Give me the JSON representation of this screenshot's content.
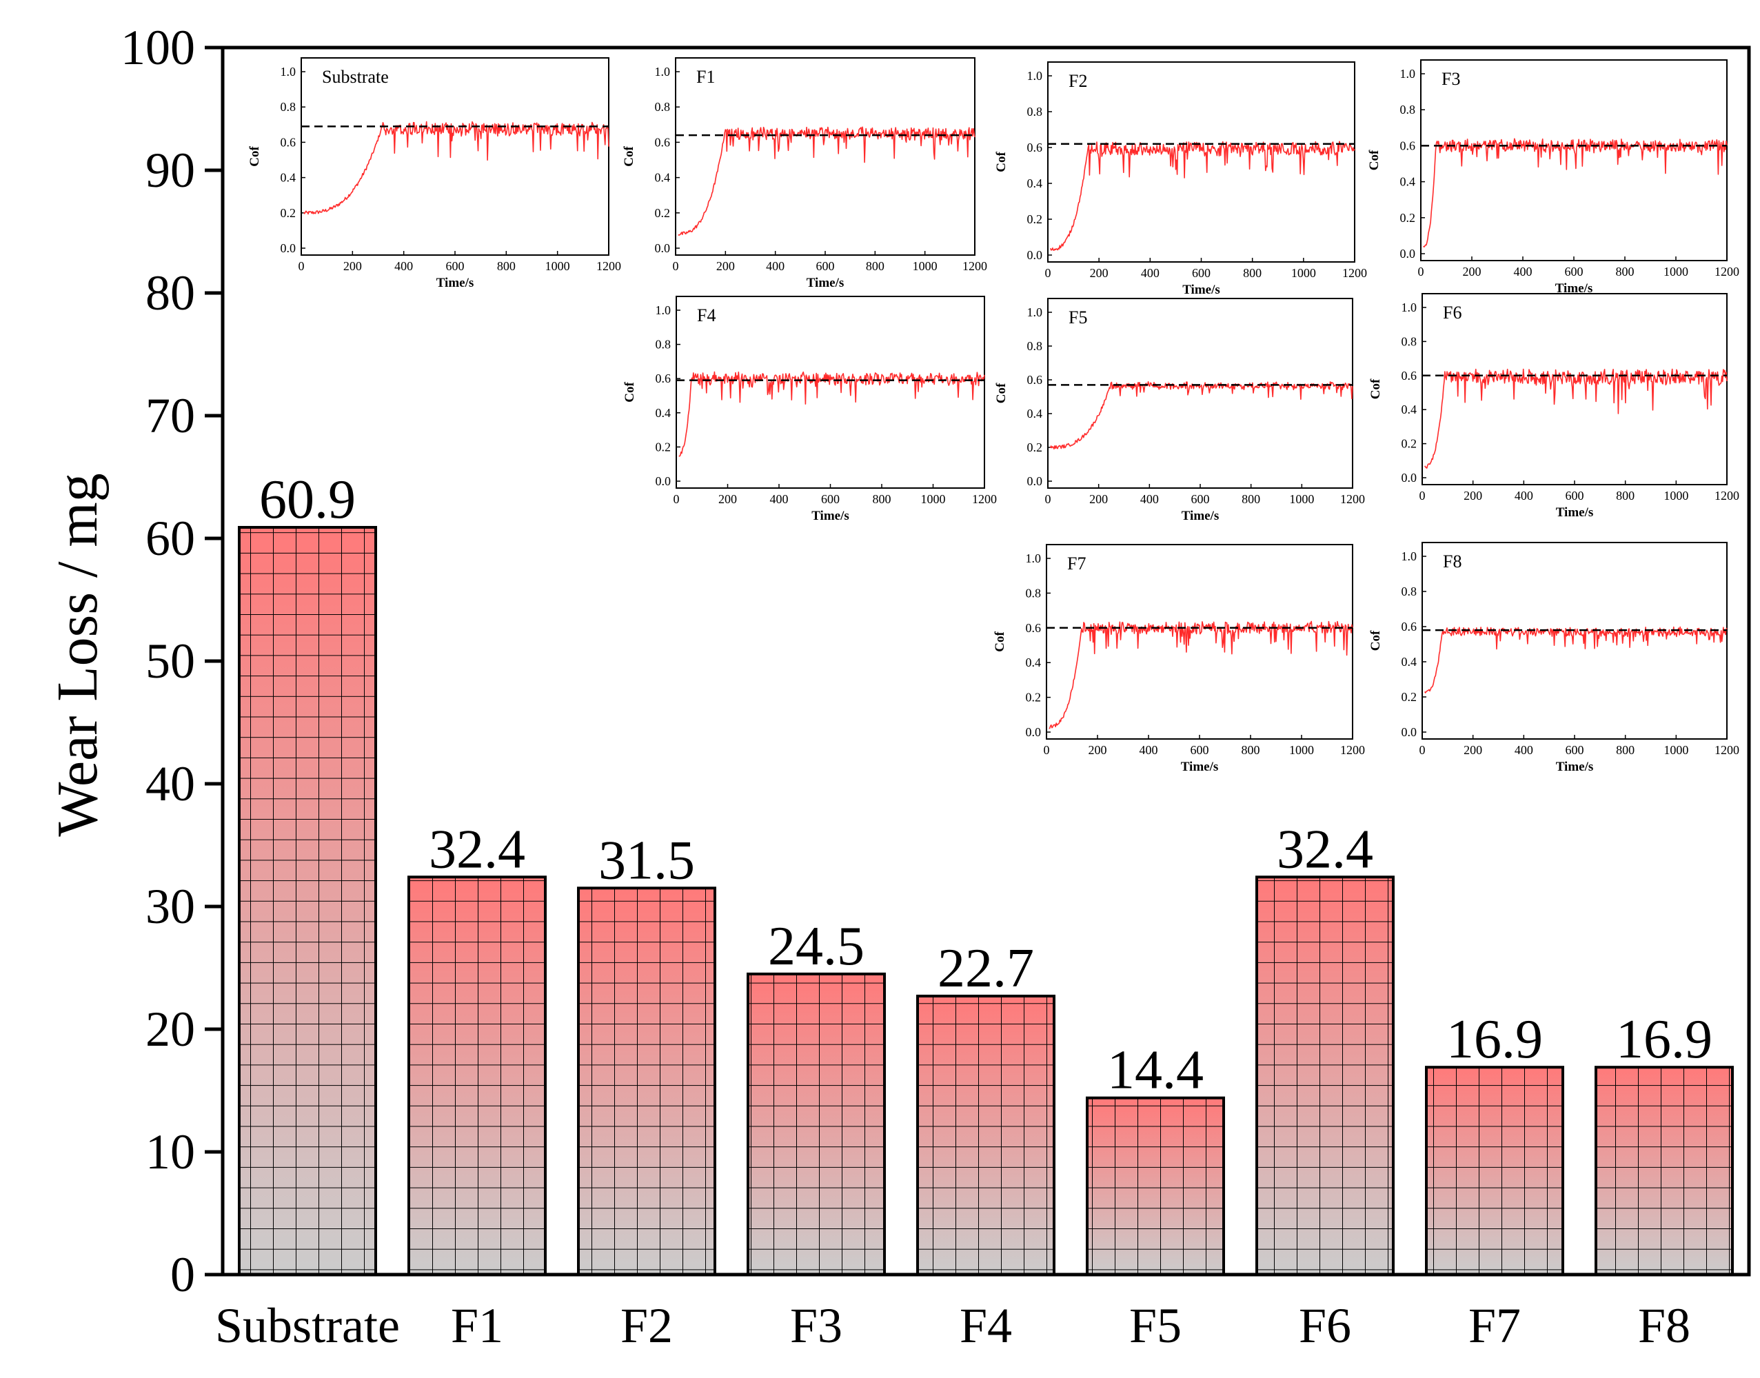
{
  "chart_data": {
    "type": "bar",
    "title": "",
    "xlabel": "",
    "ylabel": "Wear Loss / mg",
    "ylim": [
      0,
      100
    ],
    "yticks": [
      "0",
      "10",
      "20",
      "30",
      "40",
      "50",
      "60",
      "70",
      "80",
      "90",
      "100"
    ],
    "categories": [
      "Substrate",
      "F1",
      "F2",
      "F3",
      "F4",
      "F5",
      "F6",
      "F7",
      "F8"
    ],
    "values": [
      60.9,
      32.4,
      31.5,
      24.5,
      22.7,
      14.4,
      32.4,
      16.9,
      16.9
    ],
    "value_labels": [
      "60.9",
      "32.4",
      "31.5",
      "24.5",
      "22.7",
      "14.4",
      "32.4",
      "16.9",
      "16.9"
    ],
    "colors": {
      "bar_top": "#ff7a7a",
      "bar_bottom": "#cccccc",
      "grid": "#000000",
      "axis": "#000000",
      "cof_line": "#ff2b2b",
      "cof_reference": "#000000"
    },
    "insets": {
      "xlabel": "Time/s",
      "ylabel": "Cof",
      "xlim": [
        0,
        1200
      ],
      "ylim": [
        0,
        1.0
      ],
      "xticks": [
        "0",
        "200",
        "400",
        "600",
        "800",
        "1000",
        "1200"
      ],
      "yticks": [
        "0.0",
        "0.2",
        "0.4",
        "0.6",
        "0.8",
        "1.0"
      ],
      "panels": [
        {
          "label": "Substrate",
          "reference": 0.69,
          "start": 0.2,
          "rise_time": 320,
          "plateau": 0.71,
          "noise": 0.07
        },
        {
          "label": "F1",
          "reference": 0.64,
          "start": 0.08,
          "rise_time": 200,
          "plateau": 0.68,
          "noise": 0.06
        },
        {
          "label": "F2",
          "reference": 0.62,
          "start": 0.03,
          "rise_time": 160,
          "plateau": 0.63,
          "noise": 0.07
        },
        {
          "label": "F3",
          "reference": 0.6,
          "start": 0.03,
          "rise_time": 60,
          "plateau": 0.63,
          "noise": 0.06
        },
        {
          "label": "F4",
          "reference": 0.59,
          "start": 0.15,
          "rise_time": 60,
          "plateau": 0.63,
          "noise": 0.06
        },
        {
          "label": "F5",
          "reference": 0.57,
          "start": 0.2,
          "rise_time": 250,
          "plateau": 0.58,
          "noise": 0.03
        },
        {
          "label": "F6",
          "reference": 0.6,
          "start": 0.06,
          "rise_time": 90,
          "plateau": 0.63,
          "noise": 0.08
        },
        {
          "label": "F7",
          "reference": 0.6,
          "start": 0.03,
          "rise_time": 140,
          "plateau": 0.63,
          "noise": 0.06
        },
        {
          "label": "F8",
          "reference": 0.58,
          "start": 0.22,
          "rise_time": 80,
          "plateau": 0.59,
          "noise": 0.04
        }
      ]
    }
  }
}
